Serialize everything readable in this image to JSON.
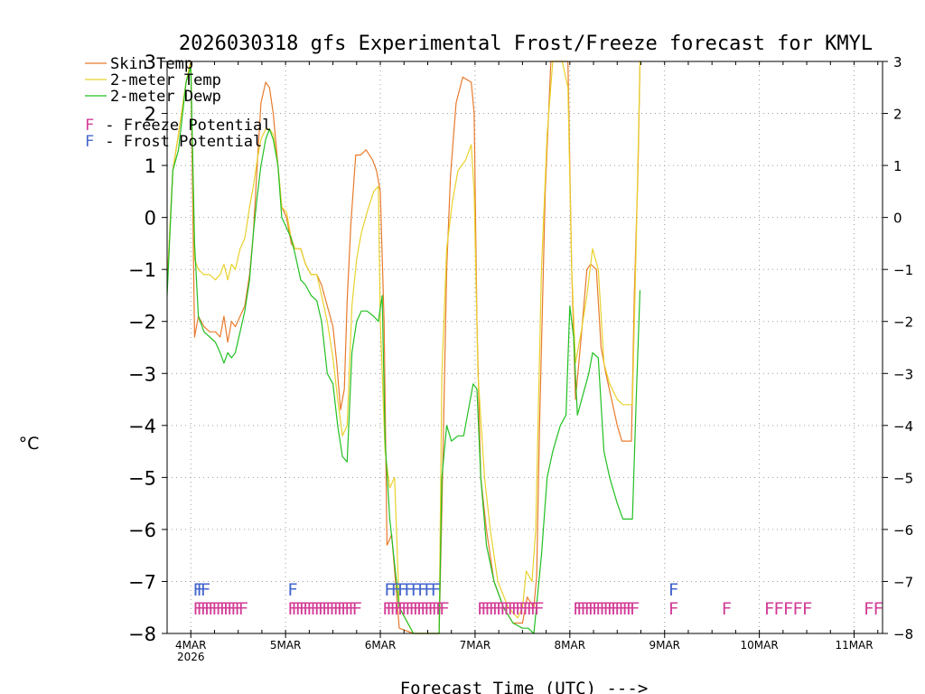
{
  "chart_data": {
    "type": "line",
    "title": "2026030318 gfs Experimental Frost/Freeze forecast for KMYL",
    "xlabel": "Forecast Time (UTC) --->",
    "ylabel": "°C",
    "ylim": [
      -8,
      3
    ],
    "xlim_days": [
      -0.25,
      7.3
    ],
    "yticks": [
      3,
      2,
      1,
      0,
      -1,
      -2,
      -3,
      -4,
      -5,
      -6,
      -7,
      -8
    ],
    "ytick_labels": [
      "3",
      "2",
      "1",
      "0",
      "−1",
      "−2",
      "−3",
      "−4",
      "−5",
      "−6",
      "−7",
      "−8"
    ],
    "xticks": [
      {
        "day": 0,
        "label": "4MAR",
        "sublabel": "2026"
      },
      {
        "day": 1,
        "label": "5MAR",
        "sublabel": ""
      },
      {
        "day": 2,
        "label": "6MAR",
        "sublabel": ""
      },
      {
        "day": 3,
        "label": "7MAR",
        "sublabel": ""
      },
      {
        "day": 4,
        "label": "8MAR",
        "sublabel": ""
      },
      {
        "day": 5,
        "label": "9MAR",
        "sublabel": ""
      },
      {
        "day": 6,
        "label": "10MAR",
        "sublabel": ""
      },
      {
        "day": 7,
        "label": "11MAR",
        "sublabel": ""
      }
    ],
    "legend": [
      {
        "label": "Skin Temp",
        "color": "#e87b2c"
      },
      {
        "label": "2-meter Temp",
        "color": "#e8d22c"
      },
      {
        "label": "2-meter Dewp",
        "color": "#22c022"
      }
    ],
    "legend2": [
      {
        "marker": "F",
        "label": " - Freeze Potential",
        "color": "#d23c96"
      },
      {
        "marker": "F",
        "label": " - Frost Potential",
        "color": "#4466cc"
      }
    ],
    "series": [
      {
        "name": "Skin Temp",
        "color": "#e87b2c",
        "points": [
          [
            -0.25,
            -1.3
          ],
          [
            -0.19,
            0.9
          ],
          [
            -0.13,
            1.6
          ],
          [
            -0.05,
            2.6
          ],
          [
            0.0,
            3.0
          ],
          [
            0.04,
            -2.3
          ],
          [
            0.08,
            -1.9
          ],
          [
            0.14,
            -2.1
          ],
          [
            0.2,
            -2.2
          ],
          [
            0.26,
            -2.2
          ],
          [
            0.31,
            -2.3
          ],
          [
            0.35,
            -1.9
          ],
          [
            0.39,
            -2.4
          ],
          [
            0.43,
            -2.0
          ],
          [
            0.47,
            -2.1
          ],
          [
            0.52,
            -1.9
          ],
          [
            0.57,
            -1.7
          ],
          [
            0.62,
            -1.1
          ],
          [
            0.66,
            -0.3
          ],
          [
            0.7,
            1.0
          ],
          [
            0.74,
            2.2
          ],
          [
            0.79,
            2.6
          ],
          [
            0.83,
            2.5
          ],
          [
            0.87,
            2.0
          ],
          [
            0.92,
            1.0
          ],
          [
            0.96,
            0.2
          ],
          [
            1.01,
            0.0
          ],
          [
            1.06,
            -0.5
          ],
          [
            1.1,
            -0.6
          ],
          [
            1.16,
            -0.6
          ],
          [
            1.21,
            -0.9
          ],
          [
            1.27,
            -1.1
          ],
          [
            1.33,
            -1.1
          ],
          [
            1.38,
            -1.3
          ],
          [
            1.44,
            -1.7
          ],
          [
            1.5,
            -2.1
          ],
          [
            1.54,
            -2.8
          ],
          [
            1.58,
            -3.7
          ],
          [
            1.62,
            -3.3
          ],
          [
            1.65,
            -1.6
          ],
          [
            1.69,
            -0.1
          ],
          [
            1.74,
            1.2
          ],
          [
            1.79,
            1.2
          ],
          [
            1.85,
            1.3
          ],
          [
            1.92,
            1.1
          ],
          [
            1.96,
            0.9
          ],
          [
            2.0,
            0.5
          ],
          [
            2.04,
            -2.0
          ],
          [
            2.07,
            -6.3
          ],
          [
            2.12,
            -6.1
          ],
          [
            2.2,
            -7.9
          ],
          [
            2.35,
            -8.0
          ],
          [
            2.5,
            -8.0
          ],
          [
            2.62,
            -8.0
          ],
          [
            2.65,
            -5.6
          ],
          [
            2.7,
            -1.0
          ],
          [
            2.74,
            0.8
          ],
          [
            2.8,
            2.2
          ],
          [
            2.87,
            2.7
          ],
          [
            2.96,
            2.6
          ],
          [
            2.99,
            2.0
          ],
          [
            3.02,
            -2.0
          ],
          [
            3.06,
            -5.0
          ],
          [
            3.12,
            -6.0
          ],
          [
            3.2,
            -7.0
          ],
          [
            3.3,
            -7.5
          ],
          [
            3.4,
            -7.8
          ],
          [
            3.5,
            -7.8
          ],
          [
            3.55,
            -7.3
          ],
          [
            3.62,
            -7.5
          ],
          [
            3.65,
            -6.9
          ],
          [
            3.68,
            -4.0
          ],
          [
            3.74,
            0.5
          ],
          [
            3.8,
            3.0
          ],
          [
            3.92,
            3.0
          ],
          [
            3.98,
            3.0
          ],
          [
            4.02,
            -1.0
          ],
          [
            4.06,
            -3.5
          ],
          [
            4.12,
            -2.3
          ],
          [
            4.18,
            -1.0
          ],
          [
            4.22,
            -0.9
          ],
          [
            4.28,
            -1.0
          ],
          [
            4.33,
            -2.5
          ],
          [
            4.38,
            -3.0
          ],
          [
            4.44,
            -3.5
          ],
          [
            4.5,
            -4.0
          ],
          [
            4.55,
            -4.3
          ],
          [
            4.6,
            -4.3
          ],
          [
            4.65,
            -4.3
          ],
          [
            4.68,
            -1.5
          ],
          [
            4.72,
            1.0
          ],
          [
            4.74,
            3.0
          ]
        ]
      },
      {
        "name": "2-meter Temp",
        "color": "#e8d22c",
        "points": [
          [
            -0.25,
            -1.3
          ],
          [
            -0.19,
            0.9
          ],
          [
            -0.13,
            1.6
          ],
          [
            -0.05,
            2.6
          ],
          [
            0.0,
            3.0
          ],
          [
            0.04,
            -0.8
          ],
          [
            0.08,
            -1.0
          ],
          [
            0.14,
            -1.1
          ],
          [
            0.2,
            -1.1
          ],
          [
            0.26,
            -1.2
          ],
          [
            0.31,
            -1.1
          ],
          [
            0.35,
            -0.9
          ],
          [
            0.39,
            -1.2
          ],
          [
            0.43,
            -0.9
          ],
          [
            0.47,
            -1.0
          ],
          [
            0.52,
            -0.6
          ],
          [
            0.57,
            -0.4
          ],
          [
            0.62,
            0.2
          ],
          [
            0.66,
            0.6
          ],
          [
            0.7,
            1.1
          ],
          [
            0.74,
            1.5
          ],
          [
            0.79,
            1.7
          ],
          [
            0.83,
            1.7
          ],
          [
            0.87,
            1.6
          ],
          [
            0.92,
            1.0
          ],
          [
            0.96,
            0.2
          ],
          [
            1.01,
            0.1
          ],
          [
            1.06,
            -0.4
          ],
          [
            1.1,
            -0.6
          ],
          [
            1.16,
            -0.6
          ],
          [
            1.21,
            -0.9
          ],
          [
            1.27,
            -1.1
          ],
          [
            1.33,
            -1.1
          ],
          [
            1.38,
            -1.5
          ],
          [
            1.44,
            -2.0
          ],
          [
            1.5,
            -2.7
          ],
          [
            1.55,
            -3.5
          ],
          [
            1.6,
            -4.2
          ],
          [
            1.65,
            -4.0
          ],
          [
            1.7,
            -1.7
          ],
          [
            1.75,
            -0.8
          ],
          [
            1.8,
            -0.3
          ],
          [
            1.86,
            0.1
          ],
          [
            1.93,
            0.5
          ],
          [
            1.98,
            0.6
          ],
          [
            2.0,
            -2.0
          ],
          [
            2.05,
            -4.5
          ],
          [
            2.1,
            -5.2
          ],
          [
            2.15,
            -5.0
          ],
          [
            2.2,
            -7.5
          ],
          [
            2.35,
            -8.0
          ],
          [
            2.5,
            -8.0
          ],
          [
            2.62,
            -8.0
          ],
          [
            2.65,
            -3.0
          ],
          [
            2.7,
            -0.6
          ],
          [
            2.76,
            0.3
          ],
          [
            2.82,
            0.9
          ],
          [
            2.9,
            1.1
          ],
          [
            2.96,
            1.4
          ],
          [
            2.99,
            0.5
          ],
          [
            3.03,
            -3.0
          ],
          [
            3.1,
            -5.0
          ],
          [
            3.16,
            -6.0
          ],
          [
            3.24,
            -7.0
          ],
          [
            3.35,
            -7.5
          ],
          [
            3.45,
            -7.7
          ],
          [
            3.5,
            -7.5
          ],
          [
            3.54,
            -6.8
          ],
          [
            3.6,
            -7.0
          ],
          [
            3.64,
            -6.0
          ],
          [
            3.7,
            -1.0
          ],
          [
            3.76,
            1.6
          ],
          [
            3.82,
            3.0
          ],
          [
            3.92,
            3.0
          ],
          [
            3.98,
            2.5
          ],
          [
            4.02,
            -1.0
          ],
          [
            4.06,
            -2.8
          ],
          [
            4.12,
            -2.2
          ],
          [
            4.18,
            -1.5
          ],
          [
            4.24,
            -0.6
          ],
          [
            4.3,
            -1.0
          ],
          [
            4.36,
            -2.8
          ],
          [
            4.42,
            -3.2
          ],
          [
            4.5,
            -3.5
          ],
          [
            4.56,
            -3.6
          ],
          [
            4.62,
            -3.6
          ],
          [
            4.66,
            -3.6
          ],
          [
            4.7,
            -0.5
          ],
          [
            4.74,
            3.0
          ]
        ]
      },
      {
        "name": "2-meter Dewp",
        "color": "#22c022",
        "points": [
          [
            -0.25,
            -1.5
          ],
          [
            -0.19,
            0.9
          ],
          [
            -0.13,
            1.3
          ],
          [
            -0.05,
            2.6
          ],
          [
            0.0,
            2.9
          ],
          [
            0.04,
            -0.5
          ],
          [
            0.08,
            -1.9
          ],
          [
            0.14,
            -2.2
          ],
          [
            0.2,
            -2.3
          ],
          [
            0.26,
            -2.4
          ],
          [
            0.31,
            -2.6
          ],
          [
            0.35,
            -2.8
          ],
          [
            0.39,
            -2.6
          ],
          [
            0.43,
            -2.7
          ],
          [
            0.47,
            -2.6
          ],
          [
            0.52,
            -2.2
          ],
          [
            0.57,
            -1.8
          ],
          [
            0.62,
            -1.2
          ],
          [
            0.66,
            -0.3
          ],
          [
            0.7,
            0.4
          ],
          [
            0.74,
            1.0
          ],
          [
            0.79,
            1.5
          ],
          [
            0.83,
            1.7
          ],
          [
            0.87,
            1.5
          ],
          [
            0.92,
            1.0
          ],
          [
            0.96,
            0.0
          ],
          [
            1.01,
            -0.2
          ],
          [
            1.06,
            -0.4
          ],
          [
            1.1,
            -0.7
          ],
          [
            1.16,
            -1.2
          ],
          [
            1.21,
            -1.3
          ],
          [
            1.27,
            -1.5
          ],
          [
            1.33,
            -1.6
          ],
          [
            1.38,
            -2.0
          ],
          [
            1.44,
            -3.0
          ],
          [
            1.5,
            -3.2
          ],
          [
            1.55,
            -4.0
          ],
          [
            1.6,
            -4.6
          ],
          [
            1.65,
            -4.7
          ],
          [
            1.7,
            -2.6
          ],
          [
            1.75,
            -2.0
          ],
          [
            1.8,
            -1.8
          ],
          [
            1.86,
            -1.8
          ],
          [
            1.93,
            -1.9
          ],
          [
            1.98,
            -2.0
          ],
          [
            2.02,
            -1.5
          ],
          [
            2.05,
            -4.3
          ],
          [
            2.1,
            -5.8
          ],
          [
            2.2,
            -7.5
          ],
          [
            2.35,
            -8.0
          ],
          [
            2.5,
            -8.0
          ],
          [
            2.62,
            -8.0
          ],
          [
            2.65,
            -5.0
          ],
          [
            2.7,
            -4.0
          ],
          [
            2.75,
            -4.3
          ],
          [
            2.82,
            -4.2
          ],
          [
            2.88,
            -4.2
          ],
          [
            2.94,
            -3.6
          ],
          [
            2.98,
            -3.2
          ],
          [
            3.02,
            -3.3
          ],
          [
            3.06,
            -5.0
          ],
          [
            3.12,
            -6.3
          ],
          [
            3.2,
            -7.0
          ],
          [
            3.3,
            -7.5
          ],
          [
            3.4,
            -7.8
          ],
          [
            3.5,
            -7.9
          ],
          [
            3.56,
            -7.9
          ],
          [
            3.62,
            -8.0
          ],
          [
            3.7,
            -6.5
          ],
          [
            3.76,
            -5.0
          ],
          [
            3.82,
            -4.5
          ],
          [
            3.9,
            -4.0
          ],
          [
            3.96,
            -3.8
          ],
          [
            4.0,
            -1.7
          ],
          [
            4.04,
            -2.3
          ],
          [
            4.08,
            -3.8
          ],
          [
            4.14,
            -3.4
          ],
          [
            4.2,
            -3.0
          ],
          [
            4.24,
            -2.6
          ],
          [
            4.3,
            -2.7
          ],
          [
            4.36,
            -4.5
          ],
          [
            4.42,
            -5.0
          ],
          [
            4.5,
            -5.5
          ],
          [
            4.56,
            -5.8
          ],
          [
            4.62,
            -5.8
          ],
          [
            4.66,
            -5.8
          ],
          [
            4.7,
            -3.5
          ],
          [
            4.74,
            -1.4
          ]
        ]
      }
    ],
    "frost_rows": [
      {
        "kind": "frost",
        "color": "#4466cc",
        "y": -7.13,
        "groups": [
          {
            "start": 0.02,
            "count": 3,
            "step": 0.04
          },
          {
            "start": 1.02,
            "count": 1,
            "step": 0.04
          },
          {
            "start": 2.04,
            "count": 8,
            "step": 0.07
          },
          {
            "start": 5.04,
            "count": 1,
            "step": 0.04
          }
        ]
      },
      {
        "kind": "freeze",
        "color": "#d23c96",
        "y": -7.5,
        "groups": [
          {
            "start": 0.02,
            "count": 13,
            "step": 0.04
          },
          {
            "start": 1.02,
            "count": 18,
            "step": 0.04
          },
          {
            "start": 2.02,
            "count": 16,
            "step": 0.04
          },
          {
            "start": 3.02,
            "count": 16,
            "step": 0.04
          },
          {
            "start": 4.03,
            "count": 16,
            "step": 0.04
          },
          {
            "start": 5.04,
            "count": 1,
            "step": 0.04
          },
          {
            "start": 5.6,
            "count": 1,
            "step": 0.04
          },
          {
            "start": 6.05,
            "count": 5,
            "step": 0.1
          },
          {
            "start": 7.1,
            "count": 2,
            "step": 0.1
          }
        ]
      }
    ]
  }
}
